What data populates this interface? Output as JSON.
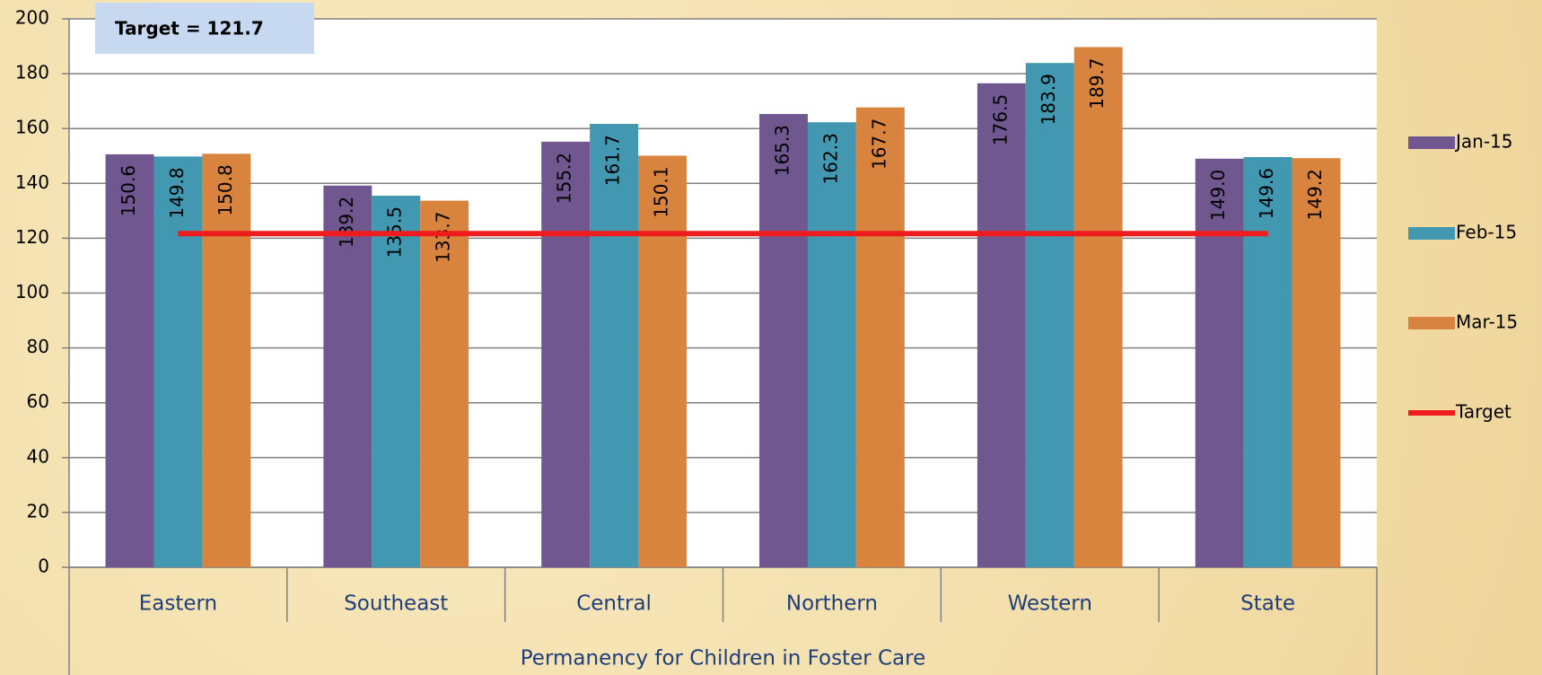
{
  "chart_data": {
    "type": "bar",
    "x_label": "Permanency for Children in Foster Care",
    "categories": [
      "Eastern",
      "Southeast",
      "Central",
      "Northern",
      "Western",
      "State"
    ],
    "series": [
      {
        "name": "Jan-15",
        "color": "#705790",
        "values": [
          150.6,
          139.2,
          155.2,
          165.3,
          176.5,
          149
        ],
        "value_labels": [
          "150.6",
          "139.2",
          "155.2",
          "165.3",
          "176.5",
          "149.0"
        ]
      },
      {
        "name": "Feb-15",
        "color": "#4198b0",
        "values": [
          149.8,
          135.5,
          161.7,
          162.3,
          183.9,
          149.6
        ],
        "value_labels": [
          "149.8",
          "135.5",
          "161.7",
          "162.3",
          "183.9",
          "149.6"
        ]
      },
      {
        "name": "Mar-15",
        "color": "#d9843e",
        "values": [
          150.8,
          133.7,
          150.1,
          167.7,
          189.7,
          149.2
        ],
        "value_labels": [
          "150.8",
          "133.7",
          "150.1",
          "167.7",
          "189.7",
          "149.2"
        ]
      }
    ],
    "target": {
      "name": "Target",
      "value": 121.7,
      "color": "#ee1c1c",
      "label": "Target = 121.7"
    },
    "ylim": [
      0,
      200
    ],
    "yticks": [
      0,
      20,
      40,
      60,
      80,
      100,
      120,
      140,
      160,
      180,
      200
    ],
    "grid": true,
    "legend": "right"
  }
}
